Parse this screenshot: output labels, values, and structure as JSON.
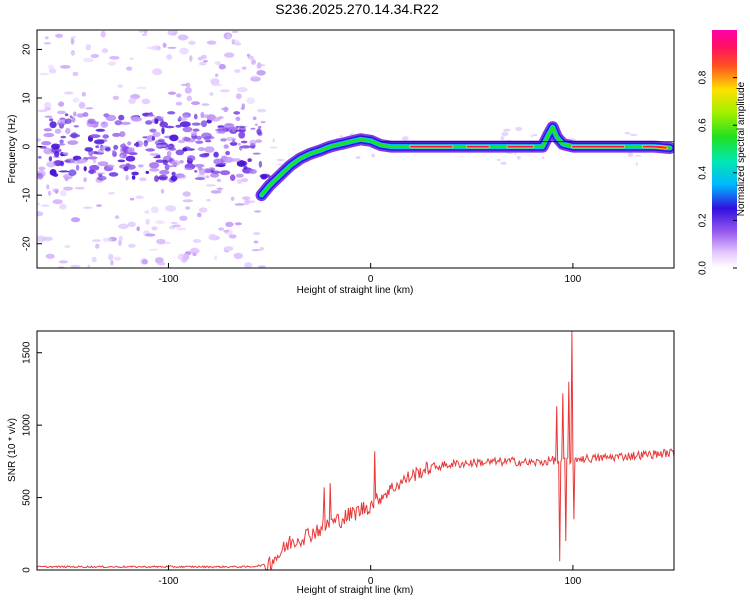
{
  "title": "S236.2025.270.14.34.R22",
  "chart_data": [
    {
      "type": "heatmap",
      "xlabel": "Height of straight line (km)",
      "ylabel": "Frequency (Hz)",
      "xlim": [
        -165,
        150
      ],
      "ylim": [
        -25,
        24
      ],
      "xticks": [
        -100,
        0,
        100
      ],
      "yticks": [
        -20,
        -10,
        0,
        10,
        20
      ],
      "ridge": {
        "heights": [
          -54,
          -50,
          -45,
          -40,
          -35,
          -30,
          -25,
          -20,
          -15,
          -10,
          -5,
          0,
          5,
          10,
          20,
          30,
          40,
          50,
          60,
          70,
          80,
          85,
          88,
          90,
          92,
          95,
          100,
          110,
          120,
          130,
          140,
          148
        ],
        "frequency_hz": [
          -10,
          -8,
          -6,
          -4,
          -2.5,
          -1.5,
          -0.8,
          0,
          0.5,
          1,
          1.5,
          1.2,
          0.3,
          0,
          0,
          0,
          0,
          0,
          0,
          0,
          0,
          0,
          2.5,
          4,
          2,
          0.5,
          0,
          0,
          0,
          0,
          0,
          -0.3
        ]
      },
      "colorbar": {
        "label": "Normalized spectral amplitude",
        "range": [
          0,
          1
        ],
        "ticks": [
          "0.0",
          "0.2",
          "0.4",
          "0.6",
          "0.8"
        ]
      }
    },
    {
      "type": "line",
      "xlabel": "Height of straight line (km)",
      "ylabel": "SNR (10 * v/v)",
      "xlim": [
        -165,
        150
      ],
      "ylim": [
        0,
        1650
      ],
      "xticks": [
        -100,
        0,
        100
      ],
      "yticks": [
        0,
        500,
        1000,
        1500
      ],
      "color": "#e8393a",
      "trend": {
        "x": [
          -165,
          -60,
          -52,
          -45,
          -40,
          -30,
          -20,
          -10,
          0,
          10,
          20,
          30,
          40,
          50,
          60,
          70,
          80,
          85,
          90,
          95,
          100,
          110,
          120,
          130,
          140,
          150
        ],
        "y": [
          22,
          22,
          35,
          110,
          190,
          250,
          320,
          380,
          450,
          560,
          650,
          710,
          730,
          740,
          745,
          750,
          740,
          745,
          760,
          740,
          770,
          770,
          780,
          790,
          800,
          810
        ]
      },
      "spikes": [
        {
          "x": -23,
          "y": 570
        },
        {
          "x": -20,
          "y": 600
        },
        {
          "x": 2,
          "y": 820
        },
        {
          "x": 92,
          "y": 1130
        },
        {
          "x": 93.5,
          "y": 60
        },
        {
          "x": 95,
          "y": 1220
        },
        {
          "x": 96.5,
          "y": 200
        },
        {
          "x": 98,
          "y": 1300
        },
        {
          "x": 99.3,
          "y": 1650
        },
        {
          "x": 100.5,
          "y": 350
        }
      ]
    }
  ]
}
